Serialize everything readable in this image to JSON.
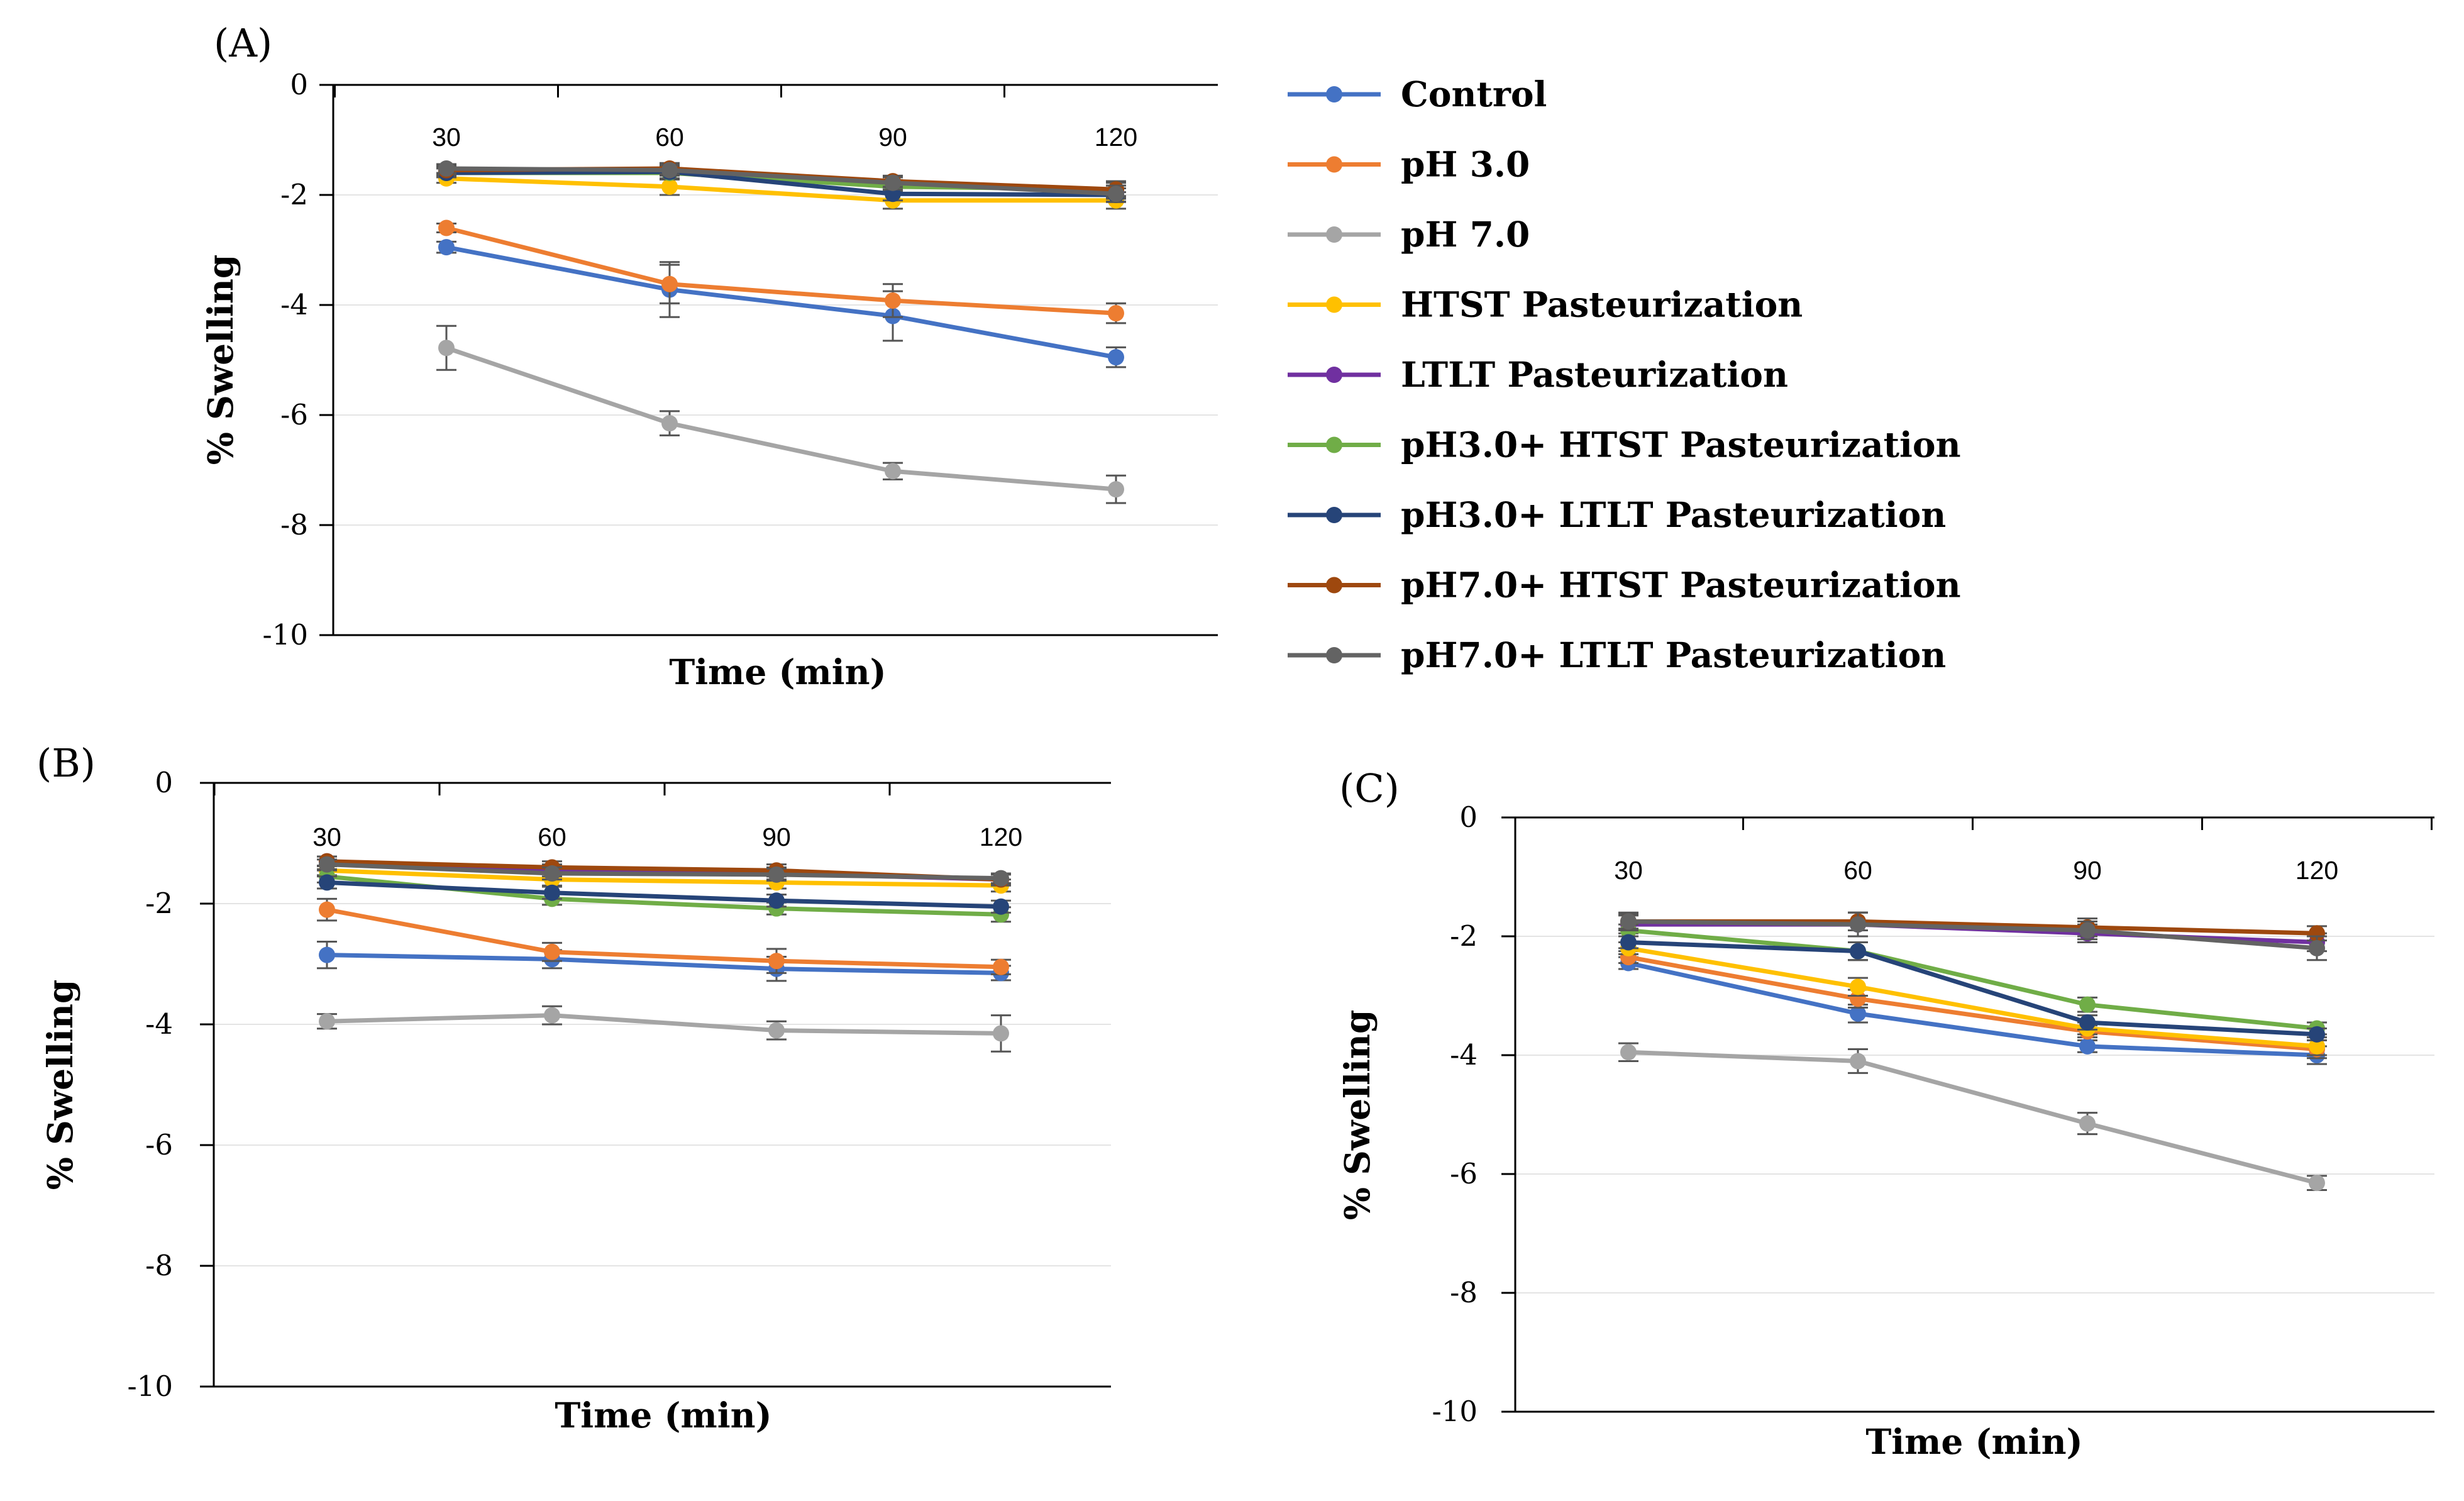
{
  "figure": {
    "legend": [
      {
        "label": "Control",
        "color": "#4472C4"
      },
      {
        "label": "pH 3.0",
        "color": "#ED7D31"
      },
      {
        "label": "pH 7.0",
        "color": "#A5A5A5"
      },
      {
        "label": "HTST Pasteurization",
        "color": "#FFC000"
      },
      {
        "label": "LTLT Pasteurization",
        "color": "#7030A0"
      },
      {
        "label": "pH3.0+ HTST Pasteurization",
        "color": "#70AD47"
      },
      {
        "label": "pH3.0+ LTLT Pasteurization",
        "color": "#264478"
      },
      {
        "label": "pH7.0+ HTST Pasteurization",
        "color": "#9E480E"
      },
      {
        "label": "pH7.0+ LTLT Pasteurization",
        "color": "#636363"
      }
    ]
  },
  "chart_data": [
    {
      "type": "line",
      "panel": "(A)",
      "xlabel": "Time (min)",
      "ylabel": "% Swelling",
      "x": [
        30,
        60,
        90,
        120
      ],
      "ylim": [
        -10,
        0
      ],
      "yticks": [
        0,
        -2,
        -4,
        -6,
        -8,
        -10
      ],
      "grid": true,
      "series": [
        {
          "name": "Control",
          "values": [
            -2.95,
            -3.72,
            -4.2,
            -4.95
          ],
          "err": [
            0.1,
            0.5,
            0.45,
            0.18
          ]
        },
        {
          "name": "pH 3.0",
          "values": [
            -2.6,
            -3.62,
            -3.92,
            -4.15
          ],
          "err": [
            0.08,
            0.35,
            0.3,
            0.18
          ]
        },
        {
          "name": "pH 7.0",
          "values": [
            -4.78,
            -6.15,
            -7.02,
            -7.35
          ],
          "err": [
            0.4,
            0.22,
            0.15,
            0.25
          ]
        },
        {
          "name": "HTST Pasteurization",
          "values": [
            -1.7,
            -1.85,
            -2.1,
            -2.1
          ],
          "err": [
            0.08,
            0.15,
            0.15,
            0.15
          ]
        },
        {
          "name": "LTLT Pasteurization",
          "values": [
            -1.58,
            -1.58,
            -1.8,
            -1.95
          ],
          "err": [
            0.08,
            0.12,
            0.12,
            0.12
          ]
        },
        {
          "name": "pH3.0+ HTST Pasteurization",
          "values": [
            -1.6,
            -1.6,
            -1.85,
            -1.9
          ],
          "err": [
            0.08,
            0.12,
            0.12,
            0.15
          ]
        },
        {
          "name": "pH3.0+ LTLT Pasteurization",
          "values": [
            -1.6,
            -1.58,
            -1.98,
            -2.0
          ],
          "err": [
            0.08,
            0.12,
            0.12,
            0.12
          ]
        },
        {
          "name": "pH7.0+ HTST Pasteurization",
          "values": [
            -1.55,
            -1.52,
            -1.75,
            -1.9
          ],
          "err": [
            0.08,
            0.1,
            0.1,
            0.12
          ]
        },
        {
          "name": "pH7.0+ LTLT Pasteurization",
          "values": [
            -1.52,
            -1.55,
            -1.78,
            -1.98
          ],
          "err": [
            0.08,
            0.1,
            0.12,
            0.15
          ]
        }
      ]
    },
    {
      "type": "line",
      "panel": "(B)",
      "xlabel": "Time (min)",
      "ylabel": "% Swelling",
      "x": [
        30,
        60,
        90,
        120
      ],
      "ylim": [
        -10,
        0
      ],
      "yticks": [
        0,
        -2,
        -4,
        -6,
        -8,
        -10
      ],
      "grid": true,
      "series": [
        {
          "name": "Control",
          "values": [
            -2.85,
            -2.92,
            -3.08,
            -3.15
          ],
          "err": [
            0.22,
            0.15,
            0.2,
            0.12
          ]
        },
        {
          "name": "pH 3.0",
          "values": [
            -2.1,
            -2.8,
            -2.95,
            -3.05
          ],
          "err": [
            0.18,
            0.15,
            0.2,
            0.12
          ]
        },
        {
          "name": "pH 7.0",
          "values": [
            -3.95,
            -3.85,
            -4.1,
            -4.15
          ],
          "err": [
            0.12,
            0.15,
            0.15,
            0.3
          ]
        },
        {
          "name": "HTST Pasteurization",
          "values": [
            -1.45,
            -1.6,
            -1.65,
            -1.7
          ],
          "err": [
            0.08,
            0.1,
            0.1,
            0.1
          ]
        },
        {
          "name": "LTLT Pasteurization",
          "values": [
            -1.3,
            -1.45,
            -1.5,
            -1.6
          ],
          "err": [
            0.08,
            0.1,
            0.1,
            0.1
          ]
        },
        {
          "name": "pH3.0+ HTST Pasteurization",
          "values": [
            -1.55,
            -1.92,
            -2.08,
            -2.18
          ],
          "err": [
            0.1,
            0.1,
            0.1,
            0.12
          ]
        },
        {
          "name": "pH3.0+ LTLT Pasteurization",
          "values": [
            -1.65,
            -1.82,
            -1.95,
            -2.05
          ],
          "err": [
            0.1,
            0.1,
            0.1,
            0.1
          ]
        },
        {
          "name": "pH7.0+ HTST Pasteurization",
          "values": [
            -1.3,
            -1.4,
            -1.45,
            -1.6
          ],
          "err": [
            0.08,
            0.1,
            0.1,
            0.08
          ]
        },
        {
          "name": "pH7.0+ LTLT Pasteurization",
          "values": [
            -1.35,
            -1.5,
            -1.52,
            -1.58
          ],
          "err": [
            0.08,
            0.1,
            0.1,
            0.08
          ]
        }
      ]
    },
    {
      "type": "line",
      "panel": "(C)",
      "xlabel": "Time (min)",
      "ylabel": "% Swelling",
      "x": [
        30,
        60,
        90,
        120
      ],
      "ylim": [
        -10,
        0
      ],
      "yticks": [
        0,
        -2,
        -4,
        -6,
        -8,
        -10
      ],
      "grid": true,
      "series": [
        {
          "name": "Control",
          "values": [
            -2.45,
            -3.3,
            -3.85,
            -4.0
          ],
          "err": [
            0.1,
            0.15,
            0.1,
            0.15
          ]
        },
        {
          "name": "pH 3.0",
          "values": [
            -2.35,
            -3.05,
            -3.6,
            -3.9
          ],
          "err": [
            0.1,
            0.15,
            0.1,
            0.15
          ]
        },
        {
          "name": "pH 7.0",
          "values": [
            -3.95,
            -4.1,
            -5.15,
            -6.15
          ],
          "err": [
            0.15,
            0.2,
            0.18,
            0.12
          ]
        },
        {
          "name": "HTST Pasteurization",
          "values": [
            -2.2,
            -2.85,
            -3.55,
            -3.85
          ],
          "err": [
            0.1,
            0.15,
            0.1,
            0.15
          ]
        },
        {
          "name": "LTLT Pasteurization",
          "values": [
            -1.8,
            -1.8,
            -1.95,
            -2.1
          ],
          "err": [
            0.15,
            0.2,
            0.15,
            0.15
          ]
        },
        {
          "name": "pH3.0+ HTST Pasteurization",
          "values": [
            -1.9,
            -2.25,
            -3.15,
            -3.55
          ],
          "err": [
            0.1,
            0.15,
            0.12,
            0.1
          ]
        },
        {
          "name": "pH3.0+ LTLT Pasteurization",
          "values": [
            -2.1,
            -2.25,
            -3.45,
            -3.65
          ],
          "err": [
            0.1,
            0.15,
            0.12,
            0.1
          ]
        },
        {
          "name": "pH7.0+ HTST Pasteurization",
          "values": [
            -1.75,
            -1.75,
            -1.85,
            -1.95
          ],
          "err": [
            0.12,
            0.15,
            0.15,
            0.12
          ]
        },
        {
          "name": "pH7.0+ LTLT Pasteurization",
          "values": [
            -1.75,
            -1.8,
            -1.9,
            -2.2
          ],
          "err": [
            0.15,
            0.2,
            0.15,
            0.2
          ]
        }
      ]
    }
  ]
}
